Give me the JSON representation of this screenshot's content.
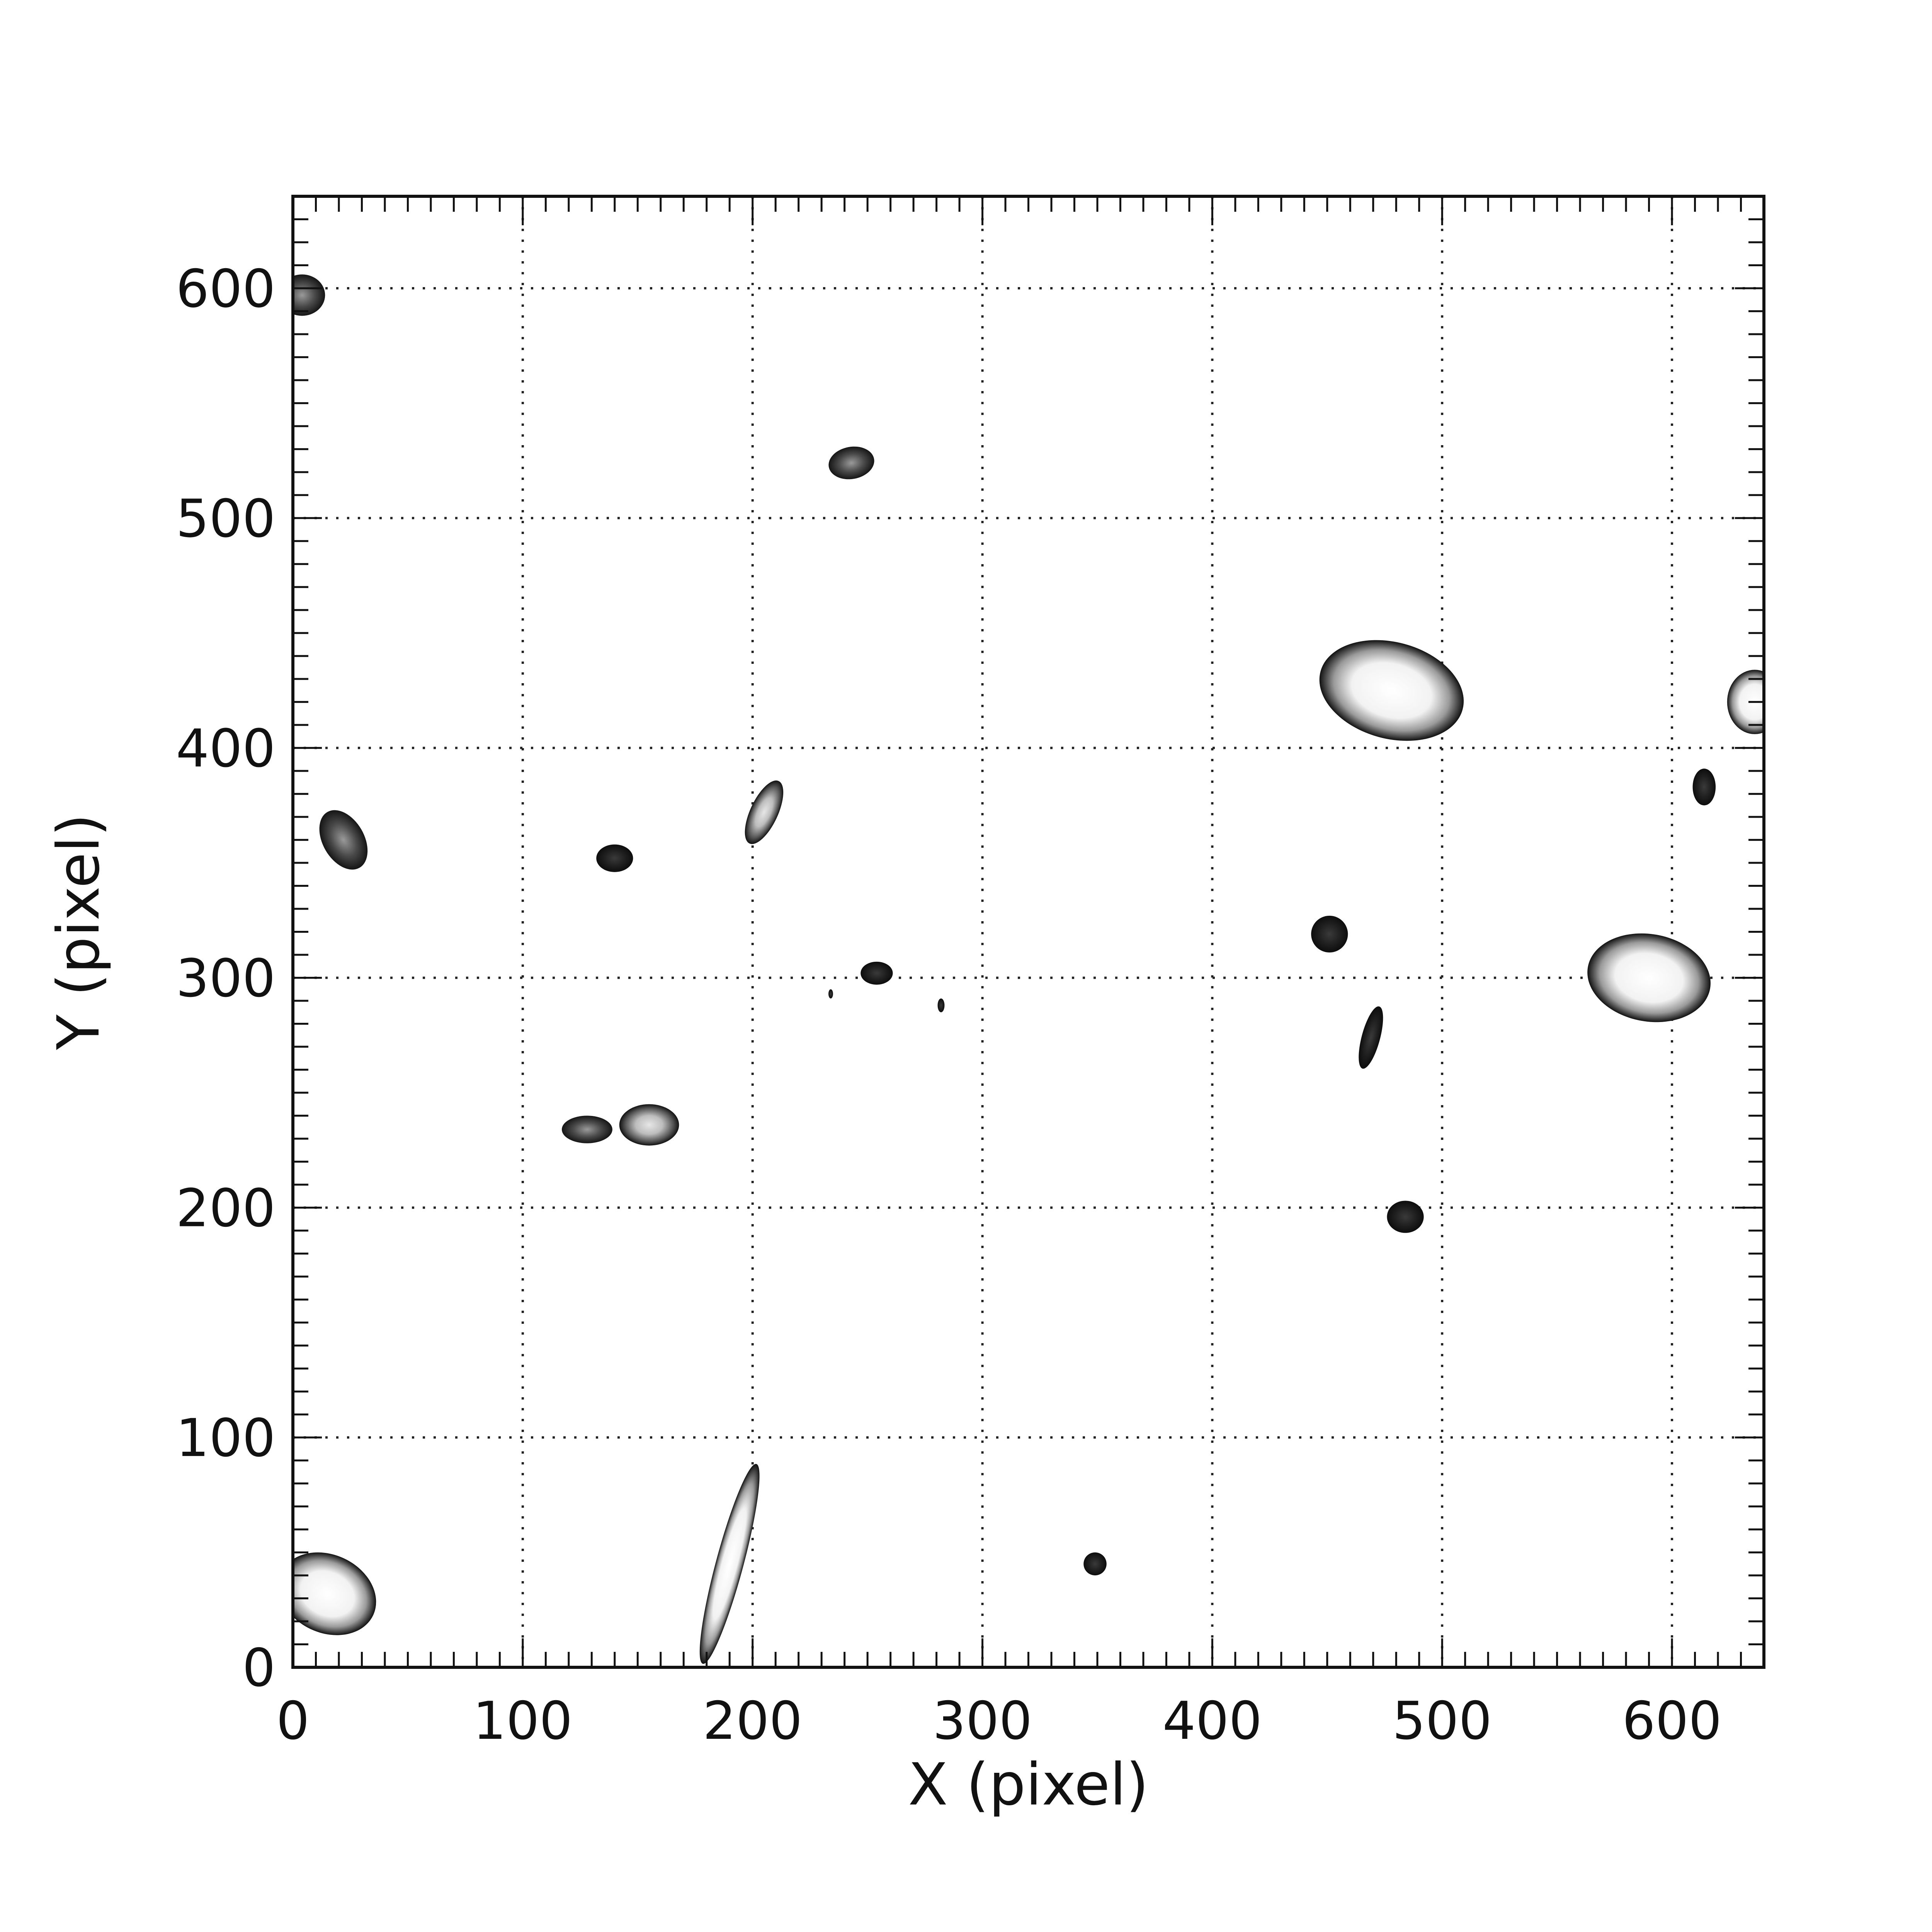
{
  "chart_data": {
    "type": "heatmap",
    "title": "",
    "xlabel": "X (pixel)",
    "ylabel": "Y (pixel)",
    "xlim": [
      0,
      640
    ],
    "ylim": [
      0,
      640
    ],
    "xticks": [
      0,
      100,
      200,
      300,
      400,
      500,
      600
    ],
    "yticks": [
      0,
      100,
      200,
      300,
      400,
      500,
      600
    ],
    "grid": true,
    "colormap": "greyscale-contour",
    "blobs": [
      {
        "x": 478,
        "y": 425,
        "rx": 32,
        "ry": 21,
        "rot": -15,
        "bright": 1.0
      },
      {
        "x": 590,
        "y": 300,
        "rx": 27,
        "ry": 19,
        "rot": -10,
        "bright": 1.0
      },
      {
        "x": 636,
        "y": 420,
        "rx": 12,
        "ry": 14,
        "rot": 0,
        "bright": 0.85
      },
      {
        "x": 15,
        "y": 32,
        "rx": 22,
        "ry": 17,
        "rot": -25,
        "bright": 0.95
      },
      {
        "x": 190,
        "y": 45,
        "rx": 45,
        "ry": 6,
        "rot": 75,
        "bright": 0.9
      },
      {
        "x": 205,
        "y": 372,
        "rx": 15,
        "ry": 6,
        "rot": 65,
        "bright": 0.75
      },
      {
        "x": 155,
        "y": 236,
        "rx": 13,
        "ry": 9,
        "rot": 0,
        "bright": 0.8
      },
      {
        "x": 128,
        "y": 234,
        "rx": 11,
        "ry": 6,
        "rot": 0,
        "bright": 0.3
      },
      {
        "x": 243,
        "y": 524,
        "rx": 10,
        "ry": 7,
        "rot": 10,
        "bright": 0.45
      },
      {
        "x": 4,
        "y": 597,
        "rx": 10,
        "ry": 9,
        "rot": 0,
        "bright": 0.5
      },
      {
        "x": 22,
        "y": 360,
        "rx": 14,
        "ry": 9,
        "rot": -60,
        "bright": 0.35
      },
      {
        "x": 140,
        "y": 352,
        "rx": 8,
        "ry": 6,
        "rot": 0,
        "bright": 0.1
      },
      {
        "x": 451,
        "y": 319,
        "rx": 8,
        "ry": 8,
        "rot": 0,
        "bright": 0.2
      },
      {
        "x": 469,
        "y": 274,
        "rx": 14,
        "ry": 4,
        "rot": 75,
        "bright": 0.1
      },
      {
        "x": 484,
        "y": 196,
        "rx": 8,
        "ry": 7,
        "rot": 0,
        "bright": 0.1
      },
      {
        "x": 614,
        "y": 383,
        "rx": 5,
        "ry": 8,
        "rot": 0,
        "bright": 0.1
      },
      {
        "x": 349,
        "y": 45,
        "rx": 5,
        "ry": 5,
        "rot": 0,
        "bright": 0.05
      },
      {
        "x": 254,
        "y": 302,
        "rx": 7,
        "ry": 5,
        "rot": 0,
        "bright": 0.05
      },
      {
        "x": 282,
        "y": 288,
        "rx": 1.5,
        "ry": 3,
        "rot": 0,
        "bright": 0.0
      },
      {
        "x": 234,
        "y": 293,
        "rx": 1,
        "ry": 2,
        "rot": 0,
        "bright": 0.0
      }
    ]
  }
}
